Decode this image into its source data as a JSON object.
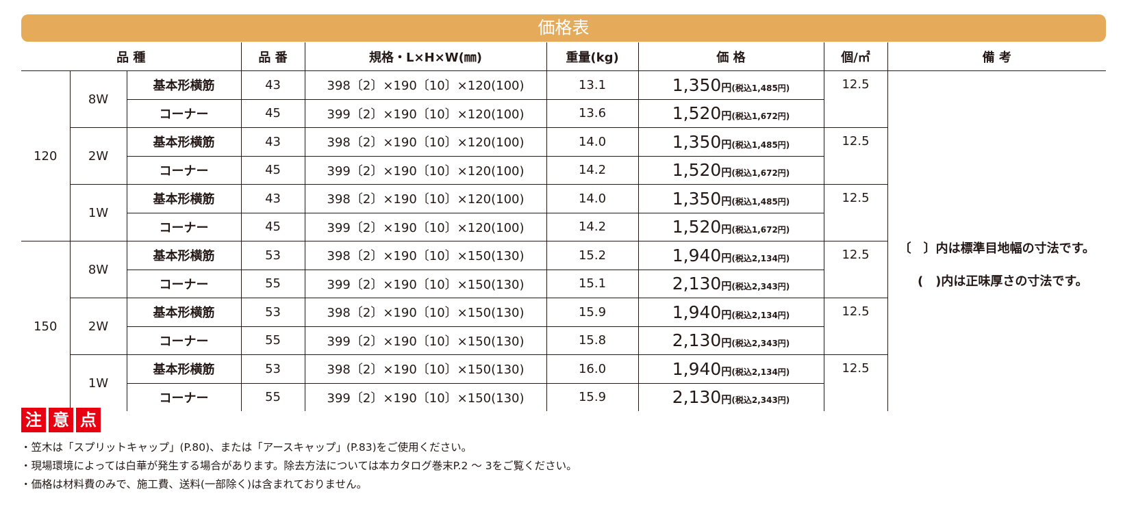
{
  "title": "価格表",
  "headers": [
    "品 種",
    "品 番",
    "規格・L×H×W(㎜)",
    "重量(kg)",
    "価 格",
    "個/㎡",
    "備 考"
  ],
  "groups": [
    {
      "size": "120",
      "subgroups": [
        {
          "w": "8W",
          "rows": [
            {
              "type": "基本形横筋",
              "code": "43",
              "spec": "398〔2〕×190〔10〕×120(100)",
              "weight": "13.1",
              "price": "1,350",
              "yen": "円",
              "tax": "(税込1,485円)",
              "per": "12.5"
            },
            {
              "type": "コーナー",
              "code": "45",
              "spec": "399〔2〕×190〔10〕×120(100)",
              "weight": "13.6",
              "price": "1,520",
              "yen": "円",
              "tax": "(税込1,672円)",
              "per": ""
            }
          ]
        },
        {
          "w": "2W",
          "rows": [
            {
              "type": "基本形横筋",
              "code": "43",
              "spec": "398〔2〕×190〔10〕×120(100)",
              "weight": "14.0",
              "price": "1,350",
              "yen": "円",
              "tax": "(税込1,485円)",
              "per": "12.5"
            },
            {
              "type": "コーナー",
              "code": "45",
              "spec": "399〔2〕×190〔10〕×120(100)",
              "weight": "14.2",
              "price": "1,520",
              "yen": "円",
              "tax": "(税込1,672円)",
              "per": ""
            }
          ]
        },
        {
          "w": "1W",
          "rows": [
            {
              "type": "基本形横筋",
              "code": "43",
              "spec": "398〔2〕×190〔10〕×120(100)",
              "weight": "14.0",
              "price": "1,350",
              "yen": "円",
              "tax": "(税込1,485円)",
              "per": "12.5"
            },
            {
              "type": "コーナー",
              "code": "45",
              "spec": "399〔2〕×190〔10〕×120(100)",
              "weight": "14.2",
              "price": "1,520",
              "yen": "円",
              "tax": "(税込1,672円)",
              "per": ""
            }
          ]
        }
      ]
    },
    {
      "size": "150",
      "subgroups": [
        {
          "w": "8W",
          "rows": [
            {
              "type": "基本形横筋",
              "code": "53",
              "spec": "398〔2〕×190〔10〕×150(130)",
              "weight": "15.2",
              "price": "1,940",
              "yen": "円",
              "tax": "(税込2,134円)",
              "per": "12.5"
            },
            {
              "type": "コーナー",
              "code": "55",
              "spec": "399〔2〕×190〔10〕×150(130)",
              "weight": "15.1",
              "price": "2,130",
              "yen": "円",
              "tax": "(税込2,343円)",
              "per": ""
            }
          ]
        },
        {
          "w": "2W",
          "rows": [
            {
              "type": "基本形横筋",
              "code": "53",
              "spec": "398〔2〕×190〔10〕×150(130)",
              "weight": "15.9",
              "price": "1,940",
              "yen": "円",
              "tax": "(税込2,134円)",
              "per": "12.5"
            },
            {
              "type": "コーナー",
              "code": "55",
              "spec": "399〔2〕×190〔10〕×150(130)",
              "weight": "15.8",
              "price": "2,130",
              "yen": "円",
              "tax": "(税込2,343円)",
              "per": ""
            }
          ]
        },
        {
          "w": "1W",
          "rows": [
            {
              "type": "基本形横筋",
              "code": "53",
              "spec": "398〔2〕×190〔10〕×150(130)",
              "weight": "16.0",
              "price": "1,940",
              "yen": "円",
              "tax": "(税込2,134円)",
              "per": "12.5"
            },
            {
              "type": "コーナー",
              "code": "55",
              "spec": "399〔2〕×190〔10〕×150(130)",
              "weight": "15.9",
              "price": "2,130",
              "yen": "円",
              "tax": "(税込2,343円)",
              "per": ""
            }
          ]
        }
      ]
    }
  ],
  "remarks": [
    "〔　〕内は標準目地幅の寸法です。",
    "(　)内は正味厚さの寸法です。"
  ],
  "notice_label": [
    "注",
    "意",
    "点"
  ],
  "notes": [
    "・笠木は「スプリットキャップ」(P.80)、または「アースキャップ」(P.83)をご使用ください。",
    "・現場環境によっては白華が発生する場合があります。除去方法については本カタログ巻末P.2 ～ 3をご覧ください。",
    "・価格は材料費のみで、施工費、送料(一部除く)は含まれておりません。"
  ],
  "colors": {
    "title_bg": "#e5aa5a",
    "notice_bg": "#e60012",
    "text": "#231815"
  }
}
